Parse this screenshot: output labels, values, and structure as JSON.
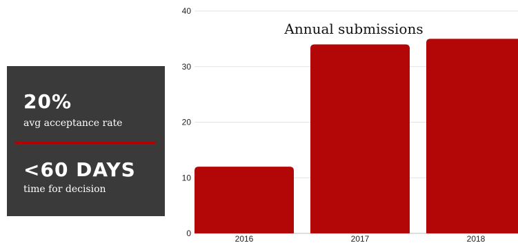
{
  "stats_panel": {
    "stat1_value": "20%",
    "stat1_label": "avg acceptance rate",
    "stat2_value": "<60 DAYS",
    "stat2_label": "time for decision",
    "background": "#3a3a3a",
    "divider_color": "#b30000"
  },
  "chart_data": {
    "type": "bar",
    "title": "Annual submissions",
    "xlabel": "",
    "ylabel": "",
    "categories": [
      "2016",
      "2017",
      "2018"
    ],
    "values": [
      12,
      34,
      35
    ],
    "ylim": [
      0,
      40
    ],
    "yticks": [
      0,
      10,
      20,
      30,
      40
    ],
    "grid": true,
    "bar_color": "#b30606",
    "grid_color": "#e3e3e3"
  }
}
